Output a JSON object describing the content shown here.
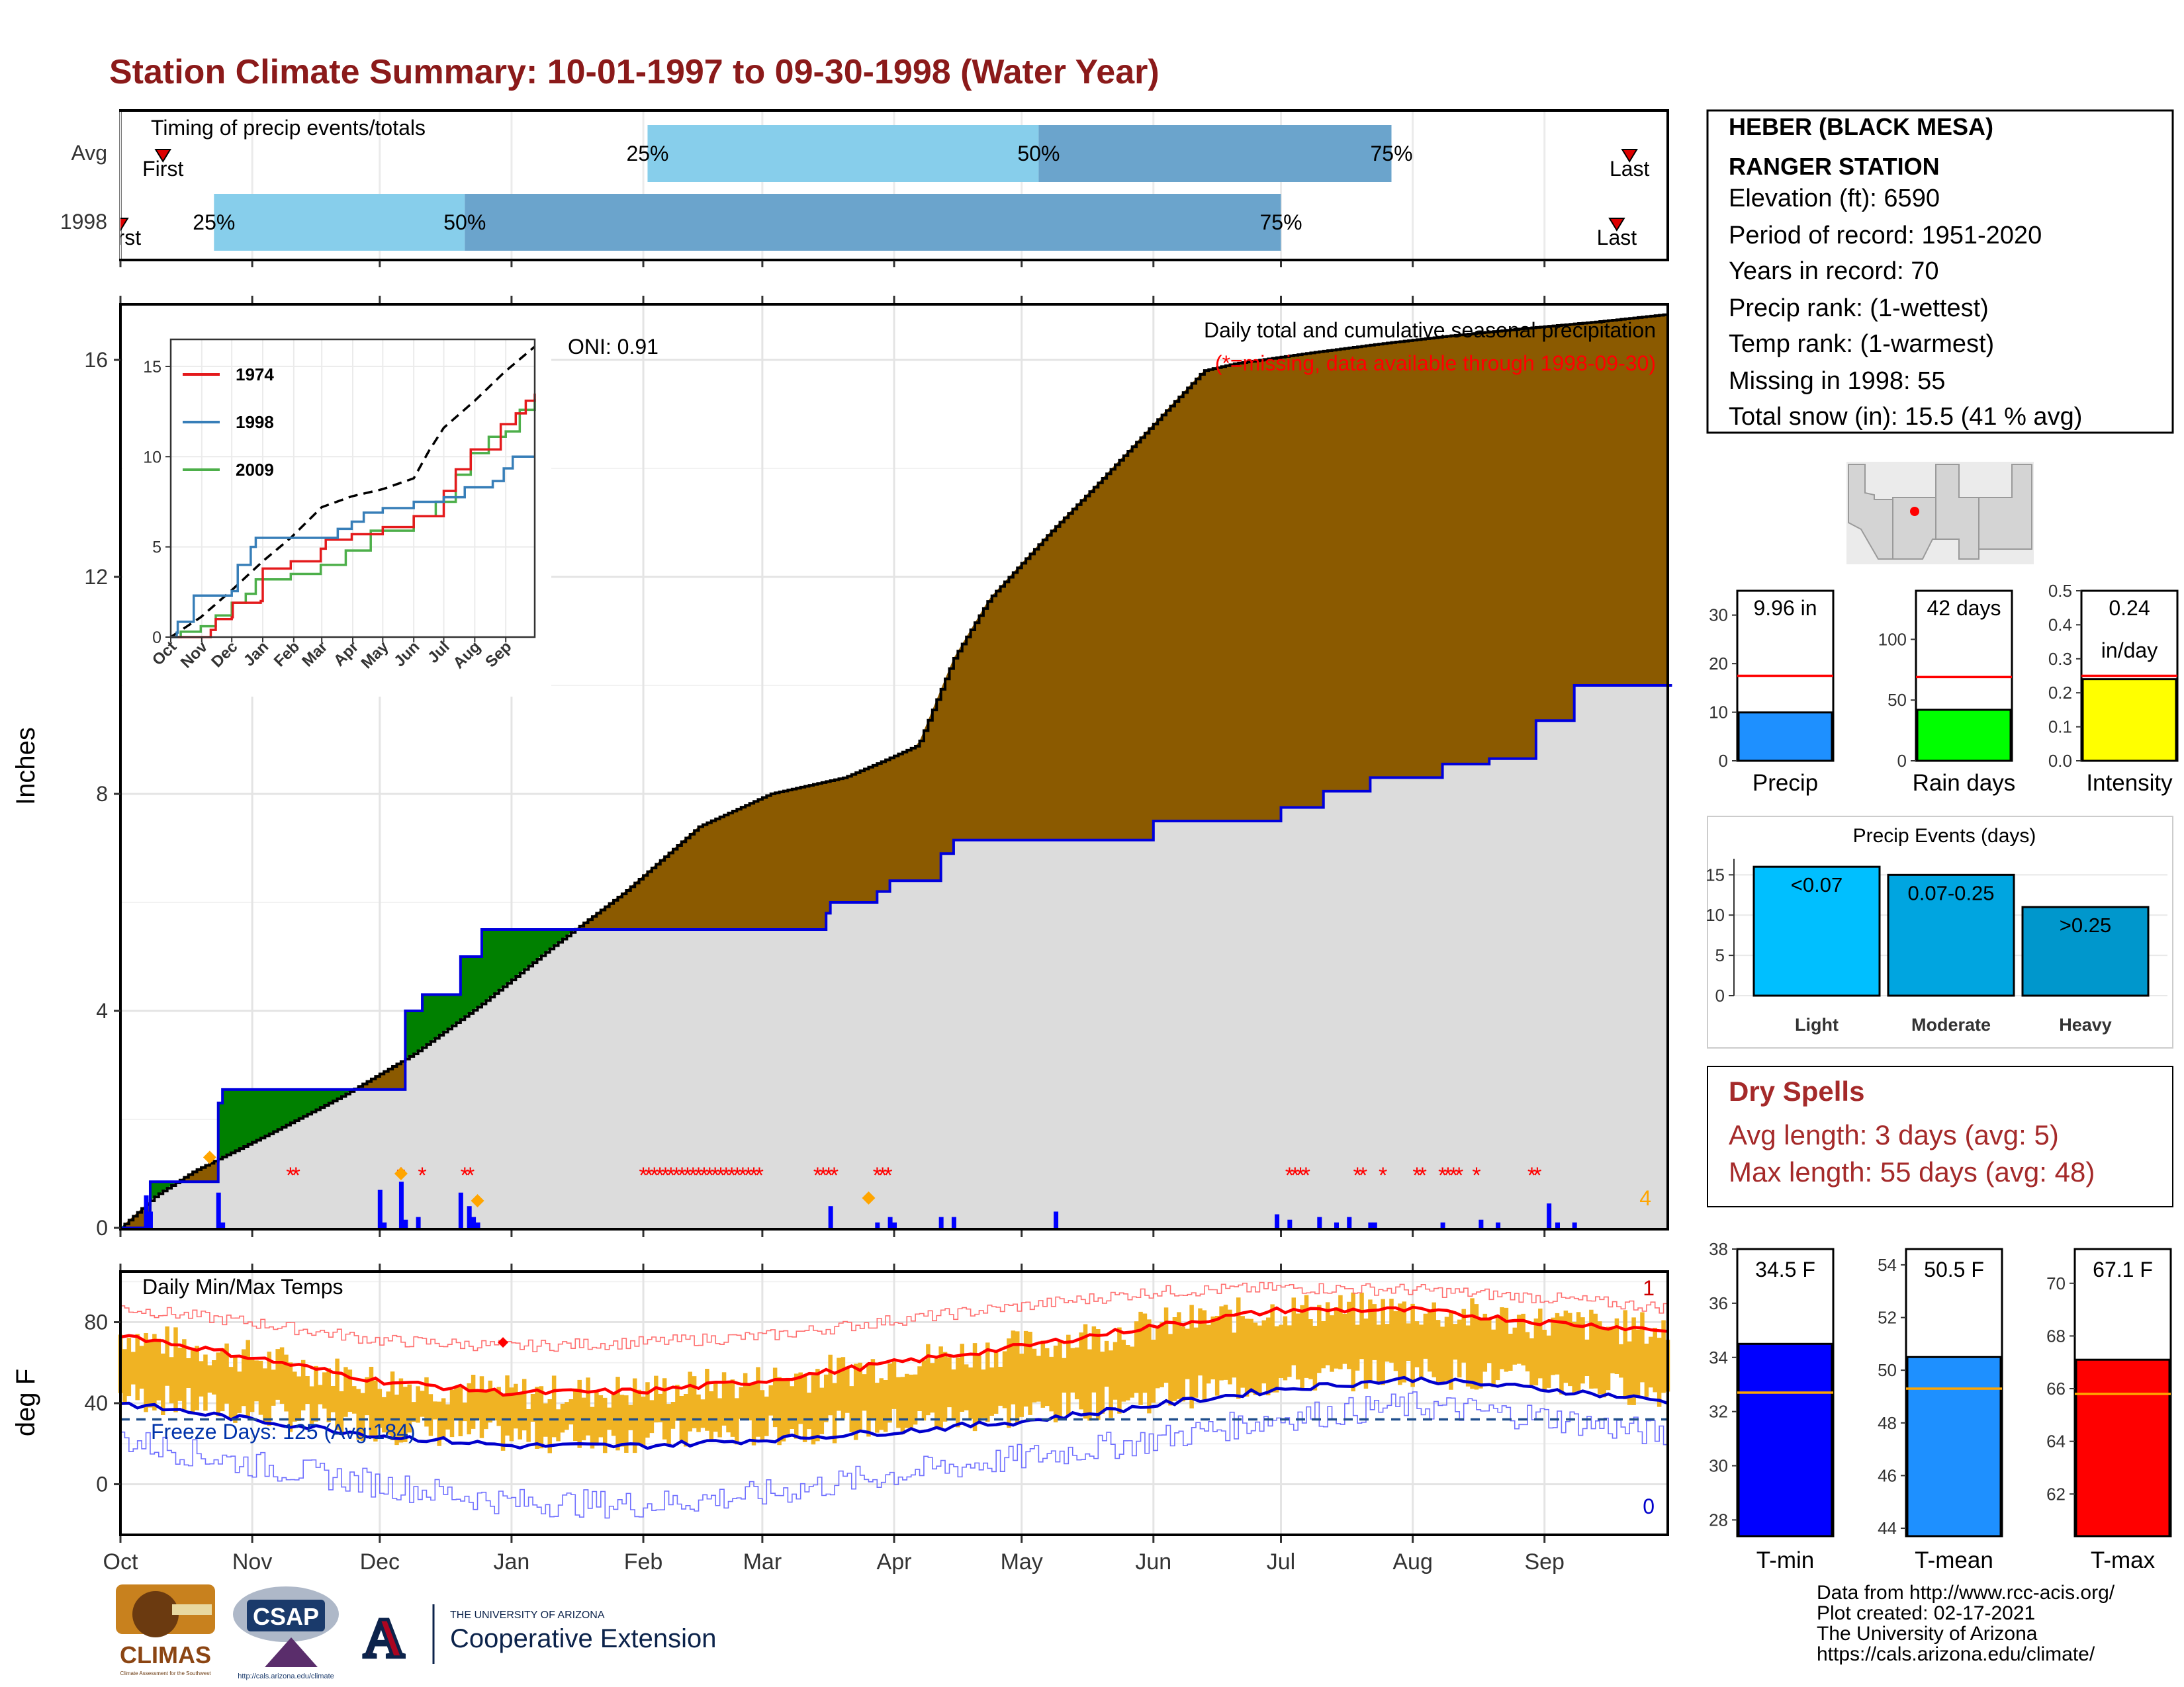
{
  "title": "Station Climate Summary: 10-01-1997 to 09-30-1998 (Water Year)",
  "colors": {
    "title": "#8B1A1A",
    "q1": "#87CEEB",
    "q2": "#6BA4CC",
    "cum_area": "#DCDCDC",
    "wet_excess": "#008000",
    "dry_deficit": "#8B5A00",
    "year_line": "#0000DD",
    "missing": "#FF0000",
    "snow_marker": "#FFA500",
    "temp_bar": "#F0B323",
    "tmax_avg": "#FF0000",
    "tmin_avg": "#0000CC",
    "precip_bar": "#1E90FF",
    "raindays_bar": "#00FF00",
    "intensity_bar": "#FFFF00",
    "light": "#00BFFF",
    "moderate": "#00A5E0",
    "heavy": "#0097CC",
    "dry_spells": "#A52A2A",
    "tmin_bar": "#0000FF",
    "tmean_bar": "#1E90FF",
    "tmax_bar": "#FF0000"
  },
  "timing": {
    "title": "Timing of precip events/totals",
    "rows": [
      {
        "label": "Avg",
        "first": "First",
        "last": "Last",
        "p25": "25%",
        "p50": "50%",
        "p75": "75%",
        "first_day": 10,
        "last_day": 355,
        "q25_day": 124,
        "q50_day": 216,
        "q75_day": 299
      },
      {
        "label": "1998",
        "first": "First",
        "last": "Last",
        "p25": "25%",
        "p50": "50%",
        "p75": "75%",
        "first_day": 0,
        "last_day": 352,
        "q25_day": 22,
        "q50_day": 81,
        "q75_day": 273
      }
    ]
  },
  "precip": {
    "ylabel": "Inches",
    "legend_title": "Daily total and cumulative seasonal precipitation",
    "legend_note": "(*=missing, data available through 1998-09-30)",
    "oni": "ONI: 0.91",
    "right_label": "4",
    "y_ticks": [
      "0",
      "4",
      "8",
      "12",
      "16"
    ],
    "ylim": [
      0,
      17
    ],
    "avg_cumulative": [
      [
        0,
        0
      ],
      [
        15,
        0.6
      ],
      [
        31,
        1.05
      ],
      [
        61,
        1.7
      ],
      [
        92,
        2.4
      ],
      [
        123,
        3.2
      ],
      [
        151,
        4.1
      ],
      [
        182,
        5.2
      ],
      [
        212,
        6.2
      ],
      [
        243,
        7.4
      ],
      [
        273,
        8.0
      ],
      [
        304,
        8.3
      ],
      [
        320,
        8.6
      ],
      [
        335,
        8.9
      ],
      [
        350,
        10.5
      ],
      [
        365,
        11.6
      ],
      [
        390,
        12.8
      ],
      [
        410,
        13.7
      ],
      [
        425,
        14.4
      ],
      [
        440,
        15.1
      ],
      [
        455,
        15.8
      ],
      [
        468,
        15.93
      ],
      [
        500,
        16.13
      ],
      [
        530,
        16.3
      ],
      [
        560,
        16.45
      ],
      [
        590,
        16.58
      ],
      [
        620,
        16.7
      ],
      [
        650,
        16.84
      ]
    ],
    "year_cumulative": [
      [
        0,
        0
      ],
      [
        6,
        0.25
      ],
      [
        7,
        0.85
      ],
      [
        22,
        0.85
      ],
      [
        23,
        2.3
      ],
      [
        24,
        2.55
      ],
      [
        61,
        2.55
      ],
      [
        67,
        4.0
      ],
      [
        71,
        4.3
      ],
      [
        79,
        4.3
      ],
      [
        80,
        5.0
      ],
      [
        85,
        5.5
      ],
      [
        128,
        5.5
      ],
      [
        165,
        5.5
      ],
      [
        166,
        5.8
      ],
      [
        167,
        6.0
      ],
      [
        178,
        6.2
      ],
      [
        181,
        6.4
      ],
      [
        193,
        6.9
      ],
      [
        196,
        7.15
      ],
      [
        212,
        7.15
      ],
      [
        243,
        7.5
      ],
      [
        272,
        7.5
      ],
      [
        273,
        7.75
      ],
      [
        283,
        8.05
      ],
      [
        294,
        8.3
      ],
      [
        311,
        8.55
      ],
      [
        322,
        8.65
      ],
      [
        333,
        9.35
      ],
      [
        342,
        10.0
      ],
      [
        365,
        10.0
      ]
    ],
    "daily_spikes": [
      [
        6,
        0.6
      ],
      [
        7,
        0.3
      ],
      [
        23,
        0.65
      ],
      [
        24,
        0.1
      ],
      [
        61,
        0.7
      ],
      [
        62,
        0.1
      ],
      [
        66,
        0.85
      ],
      [
        67,
        0.15
      ],
      [
        70,
        0.2
      ],
      [
        80,
        0.65
      ],
      [
        82,
        0.4
      ],
      [
        83,
        0.2
      ],
      [
        84,
        0.1
      ],
      [
        167,
        0.4
      ],
      [
        178,
        0.1
      ],
      [
        181,
        0.2
      ],
      [
        182,
        0.1
      ],
      [
        193,
        0.2
      ],
      [
        196,
        0.2
      ],
      [
        220,
        0.3
      ],
      [
        272,
        0.25
      ],
      [
        275,
        0.15
      ],
      [
        282,
        0.2
      ],
      [
        286,
        0.1
      ],
      [
        289,
        0.2
      ],
      [
        294,
        0.1
      ],
      [
        295,
        0.1
      ],
      [
        311,
        0.1
      ],
      [
        320,
        0.15
      ],
      [
        324,
        0.1
      ],
      [
        336,
        0.45
      ],
      [
        338,
        0.1
      ],
      [
        342,
        0.1
      ]
    ],
    "missing_ranges": [
      [
        40,
        42
      ],
      [
        66,
        66
      ],
      [
        71,
        72
      ],
      [
        81,
        83
      ],
      [
        123,
        151
      ],
      [
        164,
        168
      ],
      [
        178,
        181
      ],
      [
        275,
        280
      ],
      [
        291,
        293
      ],
      [
        297,
        297
      ],
      [
        305,
        307
      ],
      [
        311,
        316
      ],
      [
        319,
        320
      ],
      [
        332,
        334
      ]
    ],
    "snow_markers": [
      [
        21,
        1.3
      ],
      [
        66,
        1.0
      ],
      [
        84,
        0.5
      ],
      [
        176,
        0.55
      ]
    ]
  },
  "inset": {
    "y_ticks": [
      "0",
      "5",
      "10",
      "15"
    ],
    "months": [
      "Oct",
      "Nov",
      "Dec",
      "Jan",
      "Feb",
      "Mar",
      "Apr",
      "May",
      "Jun",
      "Jul",
      "Aug",
      "Sep"
    ],
    "legend": [
      "1974",
      "1998",
      "2009"
    ],
    "legend_colors": [
      "#E41A1C",
      "#377EB8",
      "#4DAF4A"
    ],
    "avg": [
      [
        0,
        0
      ],
      [
        30,
        1.1
      ],
      [
        61,
        2.6
      ],
      [
        92,
        4.2
      ],
      [
        120,
        5.5
      ],
      [
        151,
        7.2
      ],
      [
        181,
        7.8
      ],
      [
        212,
        8.2
      ],
      [
        243,
        8.8
      ],
      [
        258,
        10.3
      ],
      [
        273,
        11.6
      ],
      [
        304,
        13.1
      ],
      [
        334,
        14.7
      ],
      [
        364,
        16.1
      ]
    ],
    "y1974": [
      [
        0,
        0
      ],
      [
        30,
        0
      ],
      [
        40,
        0.4
      ],
      [
        45,
        1.0
      ],
      [
        61,
        1.1
      ],
      [
        62,
        1.9
      ],
      [
        90,
        2.0
      ],
      [
        92,
        3.8
      ],
      [
        120,
        4.2
      ],
      [
        150,
        4.9
      ],
      [
        155,
        5.4
      ],
      [
        181,
        5.7
      ],
      [
        212,
        6.1
      ],
      [
        243,
        6.7
      ],
      [
        273,
        8.1
      ],
      [
        285,
        9.3
      ],
      [
        300,
        10.4
      ],
      [
        330,
        11.8
      ],
      [
        345,
        12.4
      ],
      [
        355,
        13.1
      ],
      [
        364,
        13.5
      ]
    ],
    "y1998": [
      [
        0,
        0
      ],
      [
        6,
        0.25
      ],
      [
        7,
        0.85
      ],
      [
        22,
        0.85
      ],
      [
        23,
        2.3
      ],
      [
        61,
        2.55
      ],
      [
        67,
        4.0
      ],
      [
        80,
        5.0
      ],
      [
        85,
        5.5
      ],
      [
        165,
        5.5
      ],
      [
        167,
        6.0
      ],
      [
        181,
        6.4
      ],
      [
        193,
        6.9
      ],
      [
        212,
        7.15
      ],
      [
        243,
        7.5
      ],
      [
        273,
        7.75
      ],
      [
        294,
        8.3
      ],
      [
        322,
        8.65
      ],
      [
        333,
        9.35
      ],
      [
        342,
        10.0
      ],
      [
        364,
        10.0
      ]
    ],
    "y2009": [
      [
        0,
        0
      ],
      [
        10,
        0.3
      ],
      [
        30,
        0.6
      ],
      [
        45,
        1.2
      ],
      [
        61,
        1.9
      ],
      [
        75,
        2.4
      ],
      [
        85,
        3.2
      ],
      [
        120,
        3.5
      ],
      [
        150,
        4.0
      ],
      [
        175,
        4.8
      ],
      [
        200,
        5.9
      ],
      [
        243,
        6.7
      ],
      [
        265,
        7.5
      ],
      [
        285,
        9.0
      ],
      [
        300,
        10.2
      ],
      [
        318,
        11.1
      ],
      [
        335,
        11.4
      ],
      [
        349,
        12.6
      ],
      [
        364,
        13.2
      ]
    ]
  },
  "temps": {
    "ylabel": "deg F",
    "title": "Daily Min/Max Temps",
    "freeze": "Freeze Days: 125 (Avg:184)",
    "freeze_level": 32,
    "top_right": "1",
    "bottom_right": "0",
    "y_ticks": [
      "0",
      "40",
      "80"
    ],
    "ylim": [
      -25,
      105
    ],
    "avg_max": [
      [
        0,
        74
      ],
      [
        30,
        63
      ],
      [
        61,
        51
      ],
      [
        92,
        45
      ],
      [
        123,
        46
      ],
      [
        151,
        51
      ],
      [
        182,
        60
      ],
      [
        212,
        68
      ],
      [
        243,
        78
      ],
      [
        273,
        86
      ],
      [
        304,
        86
      ],
      [
        335,
        80
      ],
      [
        364,
        76
      ]
    ],
    "avg_min": [
      [
        0,
        40
      ],
      [
        30,
        32
      ],
      [
        61,
        24
      ],
      [
        92,
        19
      ],
      [
        123,
        19
      ],
      [
        151,
        22
      ],
      [
        182,
        26
      ],
      [
        212,
        31
      ],
      [
        243,
        39
      ],
      [
        273,
        47
      ],
      [
        304,
        52
      ],
      [
        335,
        47
      ],
      [
        364,
        41
      ]
    ],
    "rec_max": [
      [
        0,
        87
      ],
      [
        30,
        80
      ],
      [
        61,
        71
      ],
      [
        92,
        68
      ],
      [
        123,
        70
      ],
      [
        151,
        73
      ],
      [
        182,
        81
      ],
      [
        212,
        88
      ],
      [
        243,
        95
      ],
      [
        273,
        97
      ],
      [
        304,
        96
      ],
      [
        335,
        92
      ],
      [
        364,
        87
      ]
    ],
    "rec_min": [
      [
        0,
        22
      ],
      [
        30,
        10
      ],
      [
        61,
        0
      ],
      [
        92,
        -9
      ],
      [
        123,
        -10
      ],
      [
        151,
        -5
      ],
      [
        182,
        5
      ],
      [
        212,
        13
      ],
      [
        243,
        22
      ],
      [
        273,
        33
      ],
      [
        304,
        39
      ],
      [
        335,
        33
      ],
      [
        364,
        24
      ]
    ],
    "record_point": [
      90,
      70
    ]
  },
  "xaxis": {
    "months": [
      "Oct",
      "Nov",
      "Dec",
      "Jan",
      "Feb",
      "Mar",
      "Apr",
      "May",
      "Jun",
      "Jul",
      "Aug",
      "Sep"
    ],
    "month_days": [
      0,
      31,
      61,
      92,
      123,
      151,
      182,
      212,
      243,
      273,
      304,
      335
    ]
  },
  "station": {
    "name1": "HEBER (BLACK MESA)",
    "name2": "RANGER STATION",
    "elevation": "Elevation (ft): 6590",
    "period": "Period of record: 1951-2020",
    "years": "Years in record: 70",
    "precip_rank": "Precip rank:  (1-wettest)",
    "temp_rank": "Temp rank:  (1-warmest)",
    "missing": "Missing in 1998: 55",
    "snow": "Total snow (in): 15.5 (41 % avg)"
  },
  "summary_bars": [
    {
      "name": "Precip",
      "label1": "9.96 in",
      "label2": "",
      "value": 9.96,
      "avg": 17.5,
      "ymax": 35,
      "ticks": [
        "0",
        "10",
        "20",
        "30"
      ],
      "tickvals": [
        0,
        10,
        20,
        30
      ]
    },
    {
      "name": "Rain days",
      "label1": "42 days",
      "label2": "",
      "value": 42,
      "avg": 69,
      "ymax": 140,
      "ticks": [
        "0",
        "50",
        "100"
      ],
      "tickvals": [
        0,
        50,
        100
      ]
    },
    {
      "name": "Intensity",
      "label1": "0.24",
      "label2": "in/day",
      "value": 0.24,
      "avg": 0.25,
      "ymax": 0.5,
      "ticks": [
        "0.0",
        "0.1",
        "0.2",
        "0.3",
        "0.4",
        "0.5"
      ],
      "tickvals": [
        0,
        0.1,
        0.2,
        0.3,
        0.4,
        0.5
      ]
    }
  ],
  "events": {
    "title": "Precip Events (days)",
    "ticks": [
      "0",
      "5",
      "10",
      "15"
    ],
    "tickvals": [
      0,
      5,
      10,
      15
    ],
    "ymax": 17,
    "bars": [
      {
        "category": "Light",
        "label": "<0.07",
        "value": 16
      },
      {
        "category": "Moderate",
        "label": "0.07-0.25",
        "value": 15
      },
      {
        "category": "Heavy",
        "label": ">0.25",
        "value": 11
      }
    ]
  },
  "dry": {
    "title": "Dry Spells",
    "avg": "Avg length: 3 days (avg: 5)",
    "max": "Max length: 55 days (avg: 48)"
  },
  "temp_bars": [
    {
      "name": "T-min",
      "label": "34.5 F",
      "value": 34.5,
      "avg": 32.7,
      "ymin": 27.4,
      "ymax": 38,
      "ticks": [
        "28",
        "30",
        "32",
        "34",
        "36",
        "38"
      ],
      "tickvals": [
        28,
        30,
        32,
        34,
        36,
        38
      ]
    },
    {
      "name": "T-mean",
      "label": "50.5 F",
      "value": 50.5,
      "avg": 49.3,
      "ymin": 43.7,
      "ymax": 54.6,
      "ticks": [
        "44",
        "46",
        "48",
        "50",
        "52",
        "54"
      ],
      "tickvals": [
        44,
        46,
        48,
        50,
        52,
        54
      ]
    },
    {
      "name": "T-max",
      "label": "67.1 F",
      "value": 67.1,
      "avg": 65.8,
      "ymin": 60.4,
      "ymax": 71.3,
      "ticks": [
        "62",
        "64",
        "66",
        "68",
        "70"
      ],
      "tickvals": [
        62,
        64,
        66,
        68,
        70
      ]
    }
  ],
  "logos": {
    "climas": "CLIMAS",
    "climas_sub": "Climate Assessment for the Southwest",
    "csap": "CSAP",
    "csap_url": "http://cals.arizona.edu/climate",
    "ua_small": "THE UNIVERSITY OF ARIZONA",
    "ua_big": "Cooperative Extension"
  },
  "credits": {
    "line1": "Data from http://www.rcc-acis.org/",
    "line2": "Plot created: 02-17-2021",
    "line3": "The University of Arizona",
    "line4": "https://cals.arizona.edu/climate/"
  },
  "chart_data": [
    {
      "type": "bar",
      "title": "Timing of precip events/totals",
      "categories": [
        "Avg",
        "1998"
      ],
      "series": [
        {
          "name": "25%",
          "values": [
            124,
            22
          ]
        },
        {
          "name": "50%",
          "values": [
            216,
            81
          ]
        },
        {
          "name": "75%",
          "values": [
            299,
            273
          ]
        }
      ]
    },
    {
      "type": "area",
      "title": "Daily total and cumulative seasonal precipitation",
      "ylabel": "Inches",
      "ylim": [
        0,
        17
      ],
      "x": [
        "Oct",
        "Nov",
        "Dec",
        "Jan",
        "Feb",
        "Mar",
        "Apr",
        "May",
        "Jun",
        "Jul",
        "Aug",
        "Sep"
      ],
      "series": [
        {
          "name": "1998",
          "values": [
            0,
            2.55,
            2.55,
            5.5,
            5.5,
            5.5,
            6.4,
            7.15,
            7.5,
            7.5,
            8.3,
            9.35
          ]
        }
      ]
    },
    {
      "type": "line",
      "title": "Daily Min/Max Temps",
      "ylabel": "deg F",
      "ylim": [
        -25,
        105
      ]
    },
    {
      "type": "bar",
      "categories": [
        "Precip",
        "Rain days",
        "Intensity"
      ],
      "values": [
        9.96,
        42,
        0.24
      ]
    },
    {
      "type": "bar",
      "title": "Precip Events (days)",
      "categories": [
        "Light",
        "Moderate",
        "Heavy"
      ],
      "values": [
        16,
        15,
        11
      ]
    },
    {
      "type": "bar",
      "categories": [
        "T-min",
        "T-mean",
        "T-max"
      ],
      "values": [
        34.5,
        50.5,
        67.1
      ]
    }
  ]
}
